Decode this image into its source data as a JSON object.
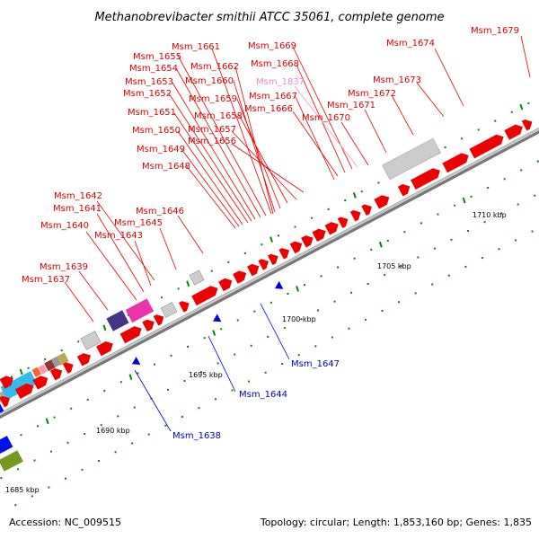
{
  "title": "Methanobrevibacter smithii ATCC 35061, complete genome",
  "footer": {
    "accession": "Accession: NC_009515",
    "summary": "Topology: circular; Length: 1,853,160 bp; Genes: 1,835"
  },
  "colors": {
    "forward_gene": "#ee0000",
    "reverse_gene": "#0000dd",
    "pseudo_gene": "#ee99cc",
    "backbone": "#999999",
    "tick": "#008800"
  },
  "scale_labels": [
    "1685 kbp",
    "1690 kbp",
    "1695 kbp",
    "1700 kbp",
    "1705 kbp",
    "1710 kbp"
  ],
  "forward_labels": [
    "Msm_1637",
    "Msm_1639",
    "Msm_1640",
    "Msm_1641",
    "Msm_1642",
    "Msm_1643",
    "Msm_1645",
    "Msm_1646",
    "Msm_1648",
    "Msm_1649",
    "Msm_1650",
    "Msm_1651",
    "Msm_1652",
    "Msm_1653",
    "Msm_1654",
    "Msm_1655",
    "Msm_1656",
    "Msm_1657",
    "Msm_1658",
    "Msm_1659",
    "Msm_1660",
    "Msm_1661",
    "Msm_1662",
    "Msm_1666",
    "Msm_1667",
    "Msm_1668",
    "Msm_1669",
    "Msm_1670",
    "Msm_1671",
    "Msm_1672",
    "Msm_1673",
    "Msm_1674",
    "Msm_1679"
  ],
  "pseudo_labels": [
    "Msm_1837"
  ],
  "reverse_labels": [
    "Msm_1638",
    "Msm_1644",
    "Msm_1647"
  ]
}
